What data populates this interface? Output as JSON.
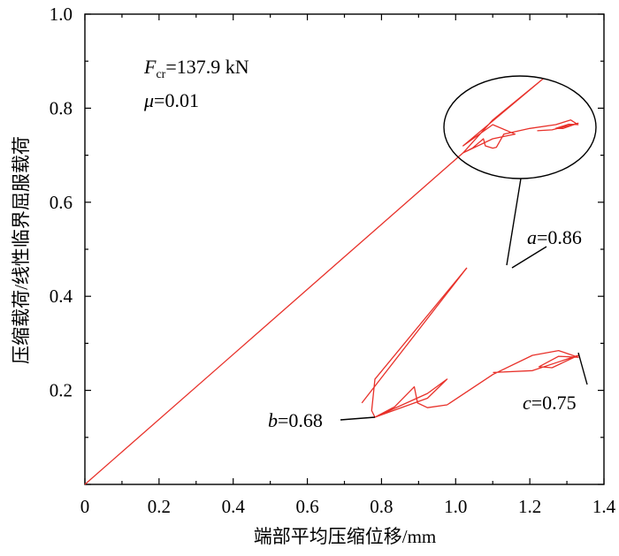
{
  "chart_data": {
    "type": "line",
    "xlabel": "端部平均压缩位移/mm",
    "ylabel": "压缩载荷/线性临界屈服载荷",
    "xlim": [
      0,
      1.4
    ],
    "ylim": [
      0,
      1.0
    ],
    "x_ticks": [
      0,
      0.2,
      0.4,
      0.6,
      0.8,
      1.0,
      1.2,
      1.4
    ],
    "x_tick_labels": [
      "0",
      "0.2",
      "0.4",
      "0.6",
      "0.8",
      "1.0",
      "1.2",
      "1.4"
    ],
    "y_ticks": [
      0.2,
      0.4,
      0.6,
      0.8,
      1.0
    ],
    "y_tick_labels": [
      "0.2",
      "0.4",
      "0.6",
      "0.8",
      "1.0"
    ],
    "series": [
      {
        "color": "#e8312a",
        "x": [
          0,
          1.02,
          1.1,
          1.235,
          1.02,
          1.1,
          1.16,
          1.1,
          1.02,
          1.045,
          1.075,
          1.08,
          1.1,
          1.11,
          1.13,
          1.2,
          1.27,
          1.31,
          1.33,
          1.305,
          1.27,
          1.29,
          1.33,
          1.26,
          1.22
        ],
        "y": [
          0,
          0.705,
          0.775,
          0.862,
          0.72,
          0.765,
          0.745,
          0.735,
          0.705,
          0.715,
          0.735,
          0.72,
          0.715,
          0.717,
          0.745,
          0.757,
          0.765,
          0.775,
          0.765,
          0.766,
          0.757,
          0.757,
          0.768,
          0.754,
          0.752
        ]
      }
    ],
    "annotations": {
      "params_line1_var": "F",
      "params_line1_sub": "cr",
      "params_line1_val": "=137.9 kN",
      "params_line2_var": "μ",
      "params_line2_val": "=0.01",
      "label_a_var": "a",
      "label_a_val": "=0.86",
      "label_b_var": "b",
      "label_b_val": "=0.68",
      "label_c_var": "c",
      "label_c_val": "=0.75"
    }
  }
}
